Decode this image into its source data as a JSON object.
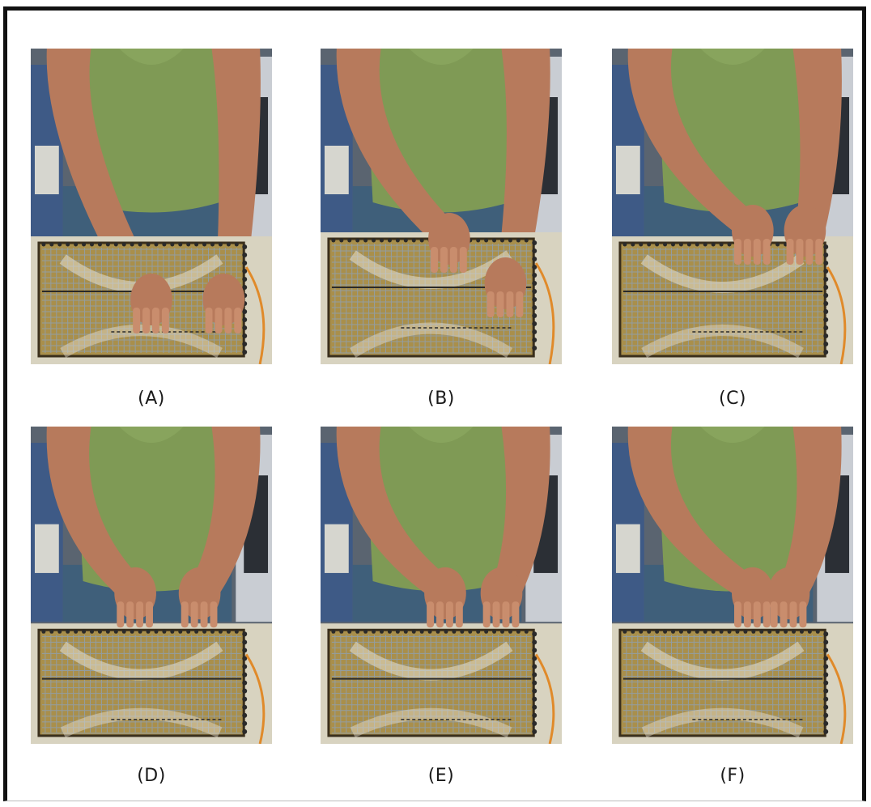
{
  "panels": [
    {
      "id": "A",
      "label": "(A)"
    },
    {
      "id": "B",
      "label": "(B)"
    },
    {
      "id": "C",
      "label": "(C)"
    },
    {
      "id": "D",
      "label": "(D)"
    },
    {
      "id": "E",
      "label": "(E)"
    },
    {
      "id": "F",
      "label": "(F)"
    }
  ],
  "colors": {
    "shirt": "#7f9a55",
    "jeans": "#3f5f7a",
    "skin": "#b77a5c",
    "board": "#a98f4b",
    "grid": "#8fa0b2",
    "frame": "#111111"
  }
}
